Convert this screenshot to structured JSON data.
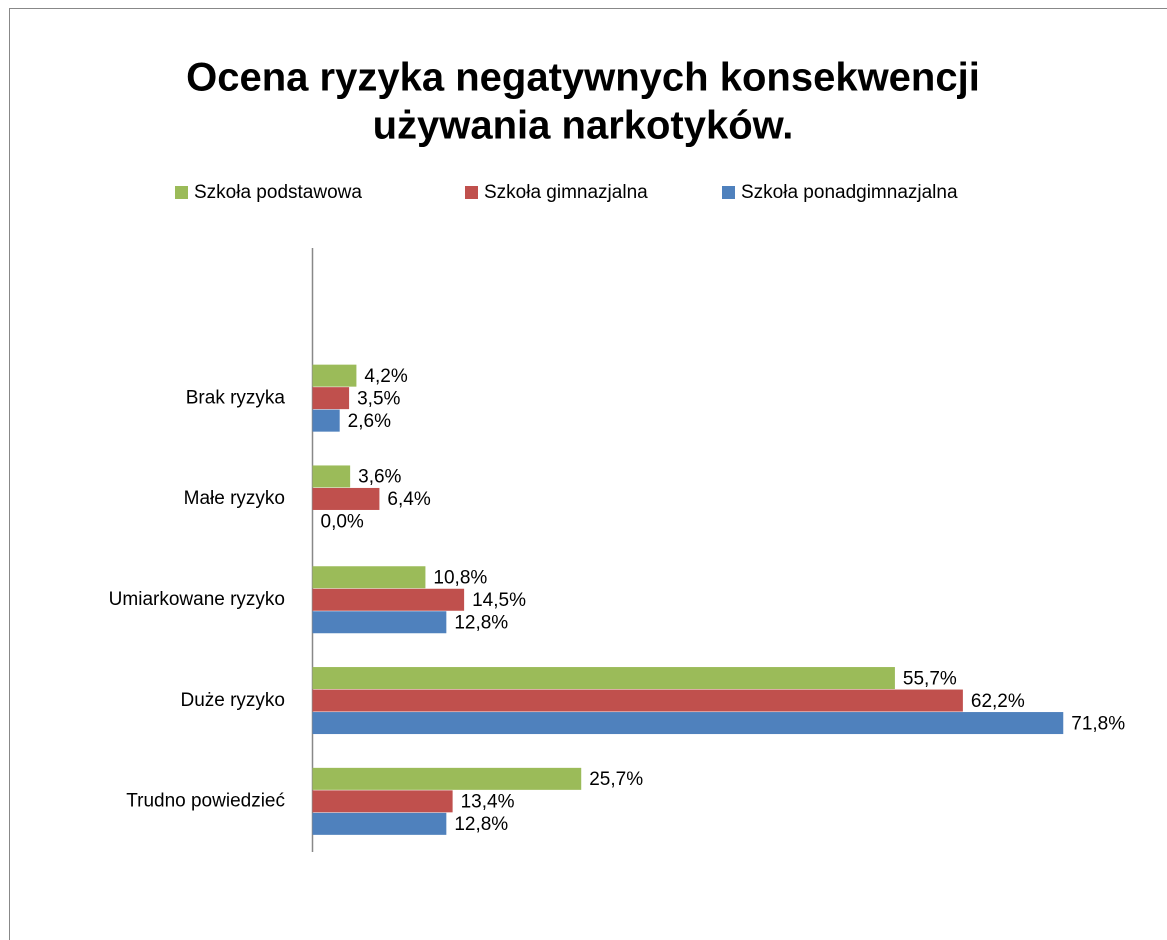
{
  "chart_data": {
    "type": "hbar",
    "title": [
      "Ocena ryzyka negatywnych konsekwencji",
      "używania narkotyków."
    ],
    "categories": [
      "Brak ryzyka",
      "Małe ryzyko",
      "Umiarkowane ryzyko",
      "Duże ryzyko",
      "Trudno powiedzieć"
    ],
    "series": [
      {
        "name": "Szkoła podstawowa",
        "color": "#9bbb59",
        "values": [
          4.2,
          3.6,
          10.8,
          55.7,
          25.7
        ],
        "value_labels": [
          "4,2%",
          "3,6%",
          "10,8%",
          "55,7%",
          "25,7%"
        ]
      },
      {
        "name": "Szkoła gimnazjalna",
        "color": "#c0504d",
        "values": [
          3.5,
          6.4,
          14.5,
          62.2,
          13.4
        ],
        "value_labels": [
          "3,5%",
          "6,4%",
          "14,5%",
          "62,2%",
          "13,4%"
        ]
      },
      {
        "name": "Szkoła ponadgimnazjalna",
        "color": "#4f81bd",
        "values": [
          2.6,
          0.0,
          12.8,
          71.8,
          12.8
        ],
        "value_labels": [
          "2,6%",
          "0,0%",
          "12,8%",
          "71,8%",
          "12,8%"
        ]
      }
    ],
    "xlim": [
      0,
      80
    ],
    "legend": "top"
  }
}
